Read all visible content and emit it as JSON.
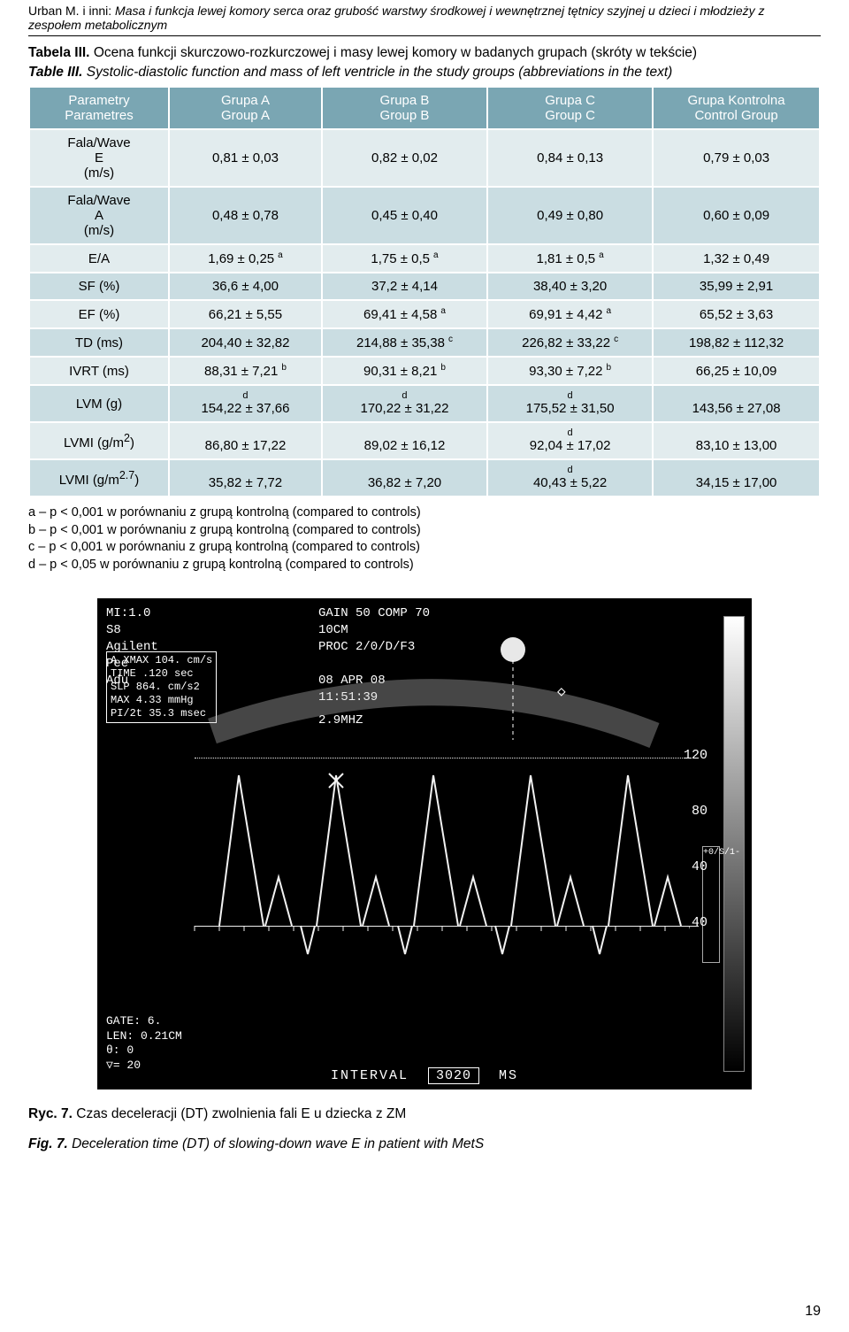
{
  "running_head": {
    "authors": "Urban M. i inni:",
    "title": "Masa i funkcja lewej komory serca oraz grubość warstwy środkowej i wewnętrznej tętnicy szyjnej u dzieci i młodzieży z zespołem metabolicznym"
  },
  "table_caption": {
    "label_pl": "Tabela III.",
    "text_pl": "Ocena funkcji skurczowo-rozkurczowej i masy lewej komory w badanych grupach (skróty w tekście)",
    "label_en": "Table III.",
    "text_en": "Systolic-diastolic function and mass of left ventricle in the study groups (abbreviations in the text)"
  },
  "table": {
    "header_bg": "#7aa6b3",
    "row_even_bg": "#cadde2",
    "row_odd_bg": "#e2ecee",
    "border_color": "#ffffff",
    "columns": [
      {
        "line1": "Parametry",
        "line2": "Parametres"
      },
      {
        "line1": "Grupa A",
        "line2": "Group A"
      },
      {
        "line1": "Grupa B",
        "line2": "Group B"
      },
      {
        "line1": "Grupa C",
        "line2": "Group C"
      },
      {
        "line1": "Grupa Kontrolna",
        "line2": "Control Group"
      }
    ],
    "rows": [
      {
        "param_lines": [
          "Fala/Wave",
          "E",
          "(m/s)"
        ],
        "cells": [
          {
            "v": "0,81 ± 0,03"
          },
          {
            "v": "0,82 ± 0,02"
          },
          {
            "v": "0,84 ± 0,13"
          },
          {
            "v": "0,79 ± 0,03"
          }
        ]
      },
      {
        "param_lines": [
          "Fala/Wave",
          "A",
          "(m/s)"
        ],
        "cells": [
          {
            "v": "0,48 ± 0,78"
          },
          {
            "v": "0,45 ± 0,40"
          },
          {
            "v": "0,49 ± 0,80"
          },
          {
            "v": "0,60 ± 0,09"
          }
        ]
      },
      {
        "param_lines": [
          "E/A"
        ],
        "cells": [
          {
            "v": "1,69 ± 0,25",
            "sup": "a"
          },
          {
            "v": "1,75 ± 0,5",
            "sup": "a"
          },
          {
            "v": "1,81 ± 0,5",
            "sup": "a"
          },
          {
            "v": "1,32 ± 0,49"
          }
        ]
      },
      {
        "param_lines": [
          "SF (%)"
        ],
        "cells": [
          {
            "v": "36,6 ± 4,00"
          },
          {
            "v": "37,2 ± 4,14"
          },
          {
            "v": "38,40 ± 3,20"
          },
          {
            "v": "35,99 ± 2,91"
          }
        ]
      },
      {
        "param_lines": [
          "EF (%)"
        ],
        "cells": [
          {
            "v": "66,21 ± 5,55"
          },
          {
            "v": "69,41 ± 4,58",
            "sup": "a"
          },
          {
            "v": "69,91 ± 4,42",
            "sup": "a"
          },
          {
            "v": "65,52 ± 3,63"
          }
        ]
      },
      {
        "param_lines": [
          "TD (ms)"
        ],
        "cells": [
          {
            "v": "204,40 ± 32,82"
          },
          {
            "v": "214,88 ± 35,38",
            "sup": "c"
          },
          {
            "v": "226,82 ± 33,22",
            "sup": "c"
          },
          {
            "v": "198,82 ± 112,32"
          }
        ]
      },
      {
        "param_lines": [
          "IVRT (ms)"
        ],
        "cells": [
          {
            "v": "88,31 ± 7,21",
            "sup": "b"
          },
          {
            "v": "90,31 ± 8,21",
            "sup": "b"
          },
          {
            "v": "93,30 ± 7,22",
            "sup": "b"
          },
          {
            "v": "66,25 ± 10,09"
          }
        ]
      },
      {
        "param_lines": [
          "LVM (g)"
        ],
        "cells": [
          {
            "v": "154,22 ± 37,66",
            "top": "d"
          },
          {
            "v": "170,22 ± 31,22",
            "top": "d"
          },
          {
            "v": "175,52 ± 31,50",
            "top": "d"
          },
          {
            "v": "143,56 ± 27,08"
          }
        ]
      },
      {
        "param_html": "LVMI (g/m<sup>2</sup>)",
        "cells": [
          {
            "v": "86,80 ± 17,22"
          },
          {
            "v": "89,02 ± 16,12"
          },
          {
            "v": "92,04 ± 17,02",
            "top": "d"
          },
          {
            "v": "83,10 ± 13,00"
          }
        ]
      },
      {
        "param_html": "LVMI (g/m<sup>2.7</sup>)",
        "cells": [
          {
            "v": "35,82 ± 7,72"
          },
          {
            "v": "36,82 ± 7,20"
          },
          {
            "v": "40,43 ± 5,22",
            "top": "d"
          },
          {
            "v": "34,15 ± 17,00"
          }
        ]
      }
    ]
  },
  "footnotes": [
    "a – p < 0,001 w porównaniu z grupą kontrolną (compared to controls)",
    "b – p < 0,001 w porównaniu z grupą kontrolną (compared to controls)",
    "c – p < 0,001 w porównaniu z grupą kontrolną (compared to controls)",
    "d – p < 0,05 w porównaniu z grupą kontrolną (compared to controls)"
  ],
  "figure": {
    "bg": "#000000",
    "fg": "#ffffff",
    "tl_lines": [
      "MI:1.0",
      "S8",
      "Agilent",
      "Pee",
      "Adu"
    ],
    "box_lines": [
      "A XMAX 104. cm/s",
      "TIME .120 sec",
      "SLP  864. cm/s2",
      "MAX  4.33 mmHg",
      "PI/2t 35.3 msec"
    ],
    "tc_lines": [
      "GAIN 50 COMP 70",
      "10CM",
      "PROC 2/0/D/F3",
      "",
      "08 APR 08",
      "11:51:39"
    ],
    "freq": "2.9MHZ",
    "y_ticks": [
      "120",
      "80",
      "40",
      "",
      "40"
    ],
    "side_label": "+0/S/1-",
    "bl_lines": [
      "GATE:  6.",
      "LEN: 0.21CM",
      "θ:    0",
      "▽=   20"
    ],
    "interval_label": "INTERVAL",
    "interval_value": "3020",
    "interval_unit": "MS",
    "wave_peaks_x": [
      60,
      170,
      280,
      390,
      500
    ],
    "wave_peak_h": 170,
    "wave_small_h": 55,
    "stroke": "#f2f2f2",
    "stroke_width": 2,
    "marker_x": 170
  },
  "figure_caption": {
    "label_pl": "Ryc. 7.",
    "text_pl": "Czas deceleracji (DT) zwolnienia fali E u dziecka z ZM",
    "label_en": "Fig. 7.",
    "text_en": "Deceleration time (DT) of slowing-down wave E in patient with MetS"
  },
  "page_number": "19"
}
